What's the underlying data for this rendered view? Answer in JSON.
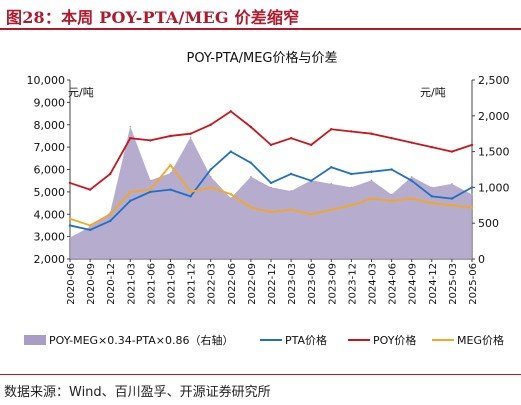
{
  "figure_label": "图28：本周 POY-PTA/MEG 价差缩窄",
  "source_note": "数据来源：Wind、百川盈孚、开源证券研究所",
  "colors": {
    "spread": "#a99dc6",
    "pta": "#1f6fc4",
    "poy": "#c8161d",
    "meg": "#f5a623",
    "accent": "#b0182b"
  },
  "chart_data": {
    "type": "line",
    "title": "POY-PTA/MEG价格与价差",
    "left_unit": "元/吨",
    "right_unit": "元/吨",
    "ylim_left": [
      2000,
      10000
    ],
    "ylim_right": [
      0,
      2500
    ],
    "yticks_left": [
      "2,000",
      "3,000",
      "4,000",
      "5,000",
      "6,000",
      "7,000",
      "8,000",
      "9,000",
      "10,000"
    ],
    "yticks_right": [
      "0",
      "500",
      "1,000",
      "1,500",
      "2,000",
      "2,500"
    ],
    "x_labels": [
      "2020-06",
      "2020-09",
      "2020-12",
      "2021-03",
      "2021-06",
      "2021-09",
      "2021-12",
      "2022-03",
      "2022-06",
      "2022-09",
      "2022-12",
      "2023-03",
      "2023-06",
      "2023-09",
      "2023-12",
      "2024-03",
      "2024-06",
      "2024-09",
      "2024-12",
      "2025-03",
      "2025-06"
    ],
    "legend": [
      "POY-MEG×0.34-PTA×0.86（右轴）",
      "PTA价格",
      "POY价格",
      "MEG价格"
    ],
    "series": [
      {
        "name": "POY-MEG×0.34-PTA×0.86（右轴）",
        "axis": "right",
        "values": [
          300,
          450,
          650,
          1850,
          1100,
          1200,
          1700,
          1150,
          850,
          1150,
          1000,
          950,
          1100,
          1050,
          1000,
          1100,
          900,
          1150,
          1000,
          1050,
          900
        ]
      },
      {
        "name": "PTA价格",
        "axis": "left",
        "values": [
          3500,
          3300,
          3700,
          4600,
          5000,
          5100,
          4800,
          6000,
          6800,
          6300,
          5400,
          5800,
          5500,
          6100,
          5800,
          5900,
          6000,
          5500,
          4800,
          4700,
          5200
        ]
      },
      {
        "name": "POY价格",
        "axis": "left",
        "values": [
          5400,
          5100,
          5800,
          7400,
          7300,
          7500,
          7600,
          8000,
          8600,
          7900,
          7100,
          7400,
          7100,
          7800,
          7700,
          7600,
          7400,
          7200,
          7000,
          6800,
          7100
        ]
      },
      {
        "name": "MEG价格",
        "axis": "left",
        "values": [
          3800,
          3500,
          4000,
          5000,
          5100,
          6200,
          5000,
          5200,
          4900,
          4300,
          4100,
          4200,
          4000,
          4200,
          4400,
          4700,
          4600,
          4700,
          4500,
          4400,
          4300
        ]
      }
    ]
  }
}
